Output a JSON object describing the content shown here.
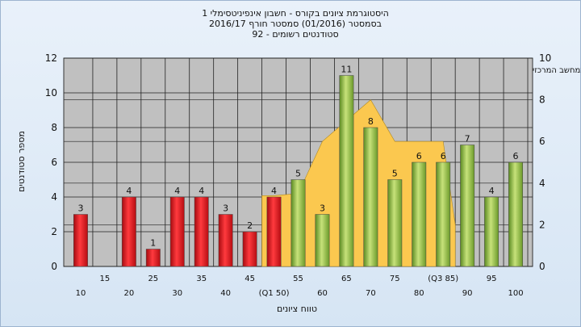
{
  "header": {
    "line1": "היסטוגרמת ציונים בקורס - חשבון אינפיניטסימלי 1",
    "line2": "בסמסטר  (01/2016)  סמסטר חורף  2016/17",
    "line3": "סטודנטים רשומים - 92"
  },
  "chart_data": {
    "type": "bar",
    "annotation": "בתשימה : ציון סופי במערכת האקדמית במחשב המרכזי",
    "xlabel": "טווח ציונים",
    "ylabel": "מספר סטודנטים",
    "ylim": [
      0,
      12
    ],
    "y_ticks": [
      0,
      2,
      4,
      6,
      8,
      10,
      12
    ],
    "y2lim": [
      0,
      10
    ],
    "y2_ticks": [
      0,
      2,
      4,
      6,
      8,
      10
    ],
    "grid": true,
    "categories": [
      10,
      15,
      20,
      25,
      30,
      35,
      40,
      45,
      50,
      55,
      60,
      65,
      70,
      75,
      80,
      85,
      90,
      95,
      100
    ],
    "x_tick_labels": [
      "10",
      "15",
      "20",
      "25",
      "30",
      "35",
      "40",
      "45",
      "(Q1 50)",
      "55",
      "60",
      "65",
      "70",
      "75",
      "80",
      "(Q3 85)",
      "90",
      "95",
      "100"
    ],
    "values": [
      3,
      0,
      4,
      1,
      4,
      4,
      3,
      2,
      4,
      5,
      3,
      11,
      8,
      5,
      6,
      6,
      7,
      4,
      6
    ],
    "bar_colors": [
      "red",
      "red",
      "red",
      "red",
      "red",
      "red",
      "red",
      "red",
      "red",
      "green",
      "green",
      "green",
      "green",
      "green",
      "green",
      "green",
      "green",
      "green",
      "green"
    ],
    "area_series": {
      "axis": "right",
      "color": "#fbc84f",
      "x": [
        47.5,
        50,
        55,
        60,
        65,
        70,
        75,
        80,
        85,
        87.5
      ],
      "values": [
        3.4,
        3.4,
        3.5,
        6.0,
        7.0,
        8.0,
        6.0,
        6.0,
        6.0,
        2.0
      ]
    },
    "colors": {
      "red": "#e8141c",
      "green": "#8dbb3c",
      "plot_bg": "#c0c0c0"
    }
  }
}
